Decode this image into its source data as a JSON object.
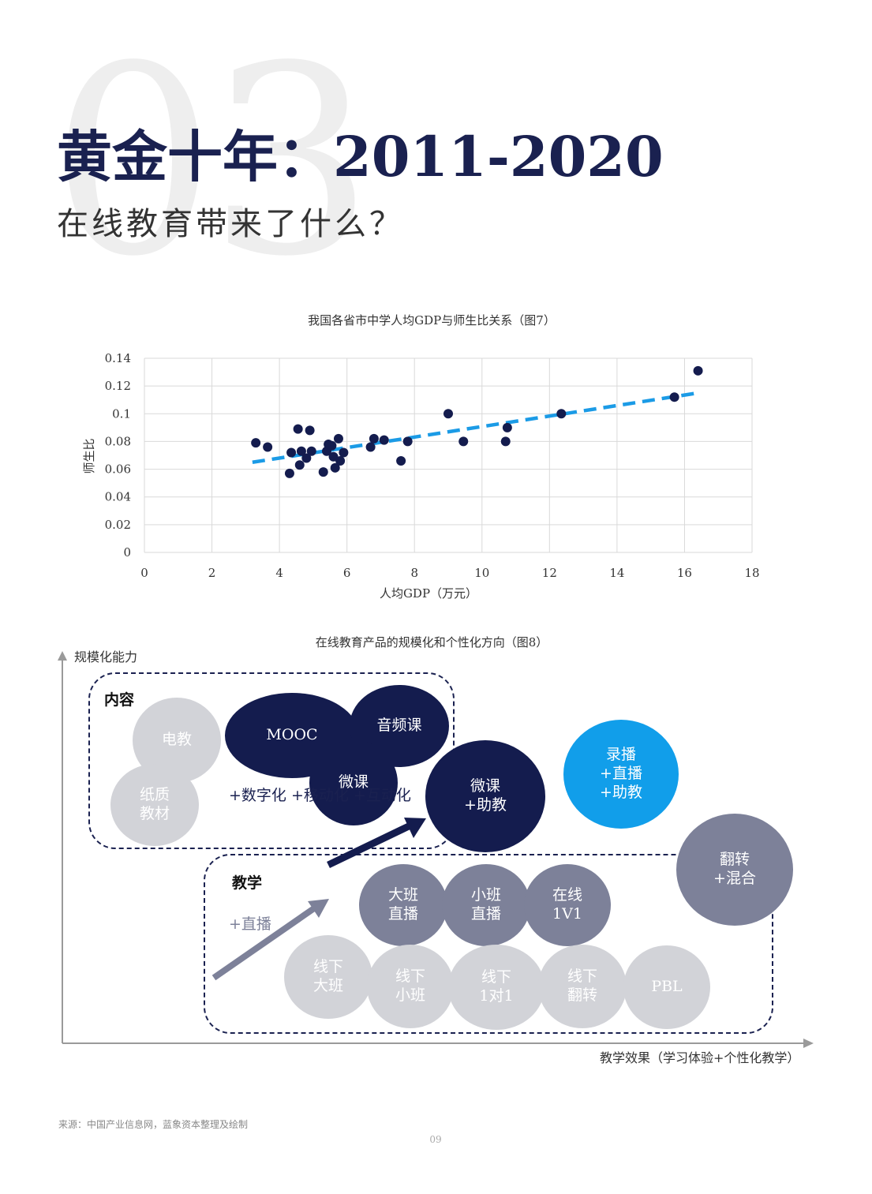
{
  "header": {
    "background_number": "03",
    "title": "黄金十年：2011-2020",
    "subtitle": "在线教育带来了什么？"
  },
  "colors": {
    "navy": "#141c4e",
    "grey": "#d2d3d8",
    "slate": "#7d8199",
    "blue": "#119eea",
    "trend": "#1b9be6"
  },
  "chart7": {
    "caption": "我国各省市中学人均GDP与师生比关系（图7）"
  },
  "chart_data": {
    "type": "scatter",
    "title": "我国各省市中学人均GDP与师生比关系（图7）",
    "xlabel": "人均GDP（万元）",
    "ylabel": "师生比",
    "xlim": [
      0,
      18
    ],
    "ylim": [
      0,
      0.14
    ],
    "x_ticks": [
      "0",
      "2",
      "4",
      "6",
      "8",
      "10",
      "12",
      "14",
      "16",
      "18"
    ],
    "y_ticks": [
      "0",
      "0.02",
      "0.04",
      "0.06",
      "0.08",
      "0.1",
      "0.12",
      "0.14"
    ],
    "grid": true,
    "series": [
      {
        "points": [
          [
            3.3,
            0.079
          ],
          [
            3.65,
            0.076
          ],
          [
            4.3,
            0.057
          ],
          [
            4.35,
            0.072
          ],
          [
            4.55,
            0.089
          ],
          [
            4.6,
            0.063
          ],
          [
            4.65,
            0.073
          ],
          [
            4.8,
            0.068
          ],
          [
            4.9,
            0.088
          ],
          [
            4.95,
            0.073
          ],
          [
            5.3,
            0.058
          ],
          [
            5.4,
            0.073
          ],
          [
            5.45,
            0.078
          ],
          [
            5.55,
            0.077
          ],
          [
            5.6,
            0.069
          ],
          [
            5.65,
            0.061
          ],
          [
            5.75,
            0.082
          ],
          [
            5.8,
            0.066
          ],
          [
            5.9,
            0.072
          ],
          [
            6.7,
            0.076
          ],
          [
            6.8,
            0.082
          ],
          [
            7.1,
            0.081
          ],
          [
            7.6,
            0.066
          ],
          [
            7.8,
            0.08
          ],
          [
            9.0,
            0.1
          ],
          [
            9.45,
            0.08
          ],
          [
            10.7,
            0.08
          ],
          [
            10.75,
            0.09
          ],
          [
            12.35,
            0.1
          ],
          [
            15.7,
            0.112
          ],
          [
            16.4,
            0.131
          ]
        ]
      }
    ],
    "trendline": {
      "x": [
        3.2,
        16.4
      ],
      "y": [
        0.065,
        0.115
      ],
      "style": "dashed"
    }
  },
  "chart8": {
    "caption": "在线教育产品的规模化和个性化方向（图8）",
    "y_axis_label": "规模化能力",
    "x_axis_label": "教学效果（学习体验+个性化教学）",
    "content_group_label": "内容",
    "teaching_group_label": "教学",
    "content_note": "+数字化\n+移动化\n+互动化",
    "teaching_note": "+直播",
    "bubbles": {
      "dianjiao": "电教",
      "zhizhi": "纸质\n教材",
      "mooc": "MOOC",
      "yinpin": "音频课",
      "weike": "微课",
      "weike_zhujiao": "微课\n+助教",
      "lubo": "录播\n+直播\n+助教",
      "fanzhuan_hunhe": "翻转\n+混合",
      "daban_zhibo": "大班\n直播",
      "xiaoban_zhibo": "小班\n直播",
      "zaixian_1v1": "在线\n1V1",
      "xianxia_daban": "线下\n大班",
      "xianxia_xiaoban": "线下\n小班",
      "xianxia_1dui1": "线下\n1对1",
      "xianxia_fanzhuan": "线下\n翻转",
      "pbl": "PBL"
    }
  },
  "footer": {
    "source": "来源：中国产业信息网，蓝象资本整理及绘制",
    "page_number": "09"
  }
}
